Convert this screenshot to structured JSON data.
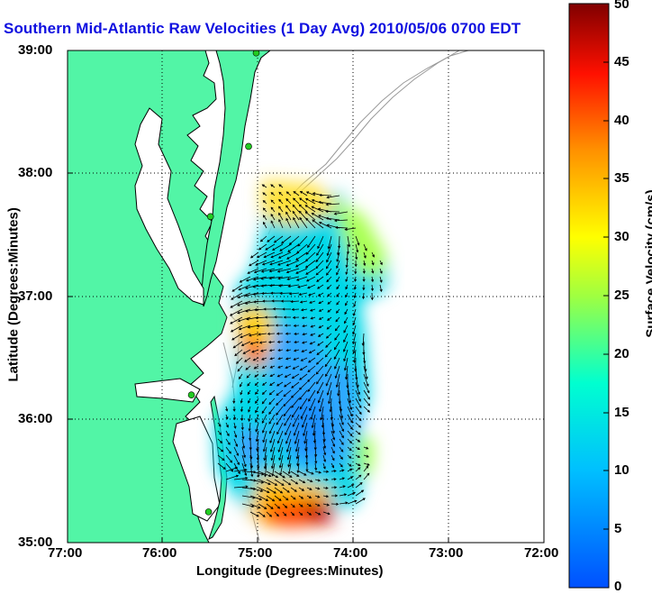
{
  "title": "Southern Mid-Atlantic Raw Velocities (1 Day Avg) 2010/05/06 0700 EDT",
  "x_axis": {
    "label": "Longitude (Degrees:Minutes)",
    "ticks": [
      "77:00",
      "76:00",
      "75:00",
      "74:00",
      "73:00",
      "72:00"
    ]
  },
  "y_axis": {
    "label": "Latitude (Degrees:Minutes)",
    "ticks": [
      "39:00",
      "38:00",
      "37:00",
      "36:00",
      "35:00"
    ]
  },
  "colorbar": {
    "label": "Surface Velocity (cm/s)",
    "ticks": [
      "50",
      "45",
      "40",
      "35",
      "30",
      "25",
      "20",
      "15",
      "10",
      "5",
      "0"
    ],
    "range": [
      0,
      50
    ],
    "colormap": "jet"
  },
  "colors": {
    "land": "#52f5a6",
    "title": "#1010e0",
    "coast_line": "#000000",
    "bathymetry": "#999999",
    "station": "#22cc22"
  },
  "stations": [
    {
      "lon": -75.02,
      "lat": 38.98
    },
    {
      "lon": -75.1,
      "lat": 38.22
    },
    {
      "lon": -75.5,
      "lat": 37.65
    },
    {
      "lon": -75.7,
      "lat": 36.2
    },
    {
      "lon": -75.52,
      "lat": 35.25
    }
  ]
}
